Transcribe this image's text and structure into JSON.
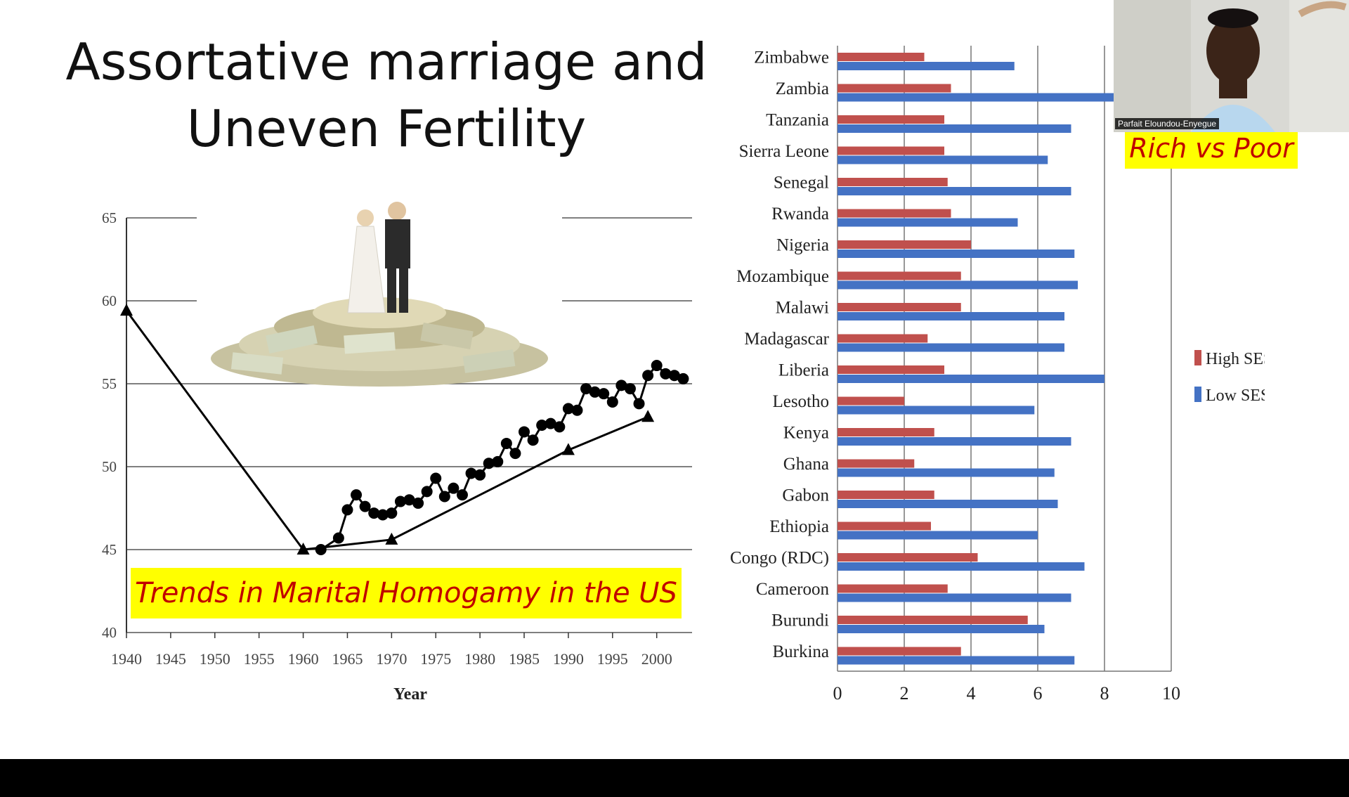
{
  "slide": {
    "title_line1": "Assortative marriage and",
    "title_line2": "Uneven Fertility",
    "line_chart_caption": "Trends in Marital Homogamy in the US",
    "bar_chart_caption": "Rich vs Poor",
    "participant_name": "Parfait Eloundou-Enyegue"
  },
  "colors": {
    "high_ses": "#c0504d",
    "low_ses": "#4472c4",
    "banner_bg": "#ffff00",
    "banner_text": "#c00000"
  },
  "chart_data": [
    {
      "type": "line",
      "title": "",
      "xlabel": "Year",
      "ylabel": "",
      "xlim": [
        1940,
        2004
      ],
      "ylim": [
        40,
        65
      ],
      "x_ticks": [
        1940,
        1945,
        1950,
        1955,
        1960,
        1965,
        1970,
        1975,
        1980,
        1985,
        1990,
        1995,
        2000
      ],
      "y_ticks": [
        40,
        45,
        50,
        55,
        60,
        65
      ],
      "y_tick_labels": [
        "40",
        "45",
        "50",
        "55",
        "60",
        "65"
      ],
      "grid": true,
      "series": [
        {
          "marker": "circle",
          "x": [
            1962,
            1964,
            1965,
            1966,
            1967,
            1968,
            1969,
            1970,
            1971,
            1972,
            1973,
            1974,
            1975,
            1976,
            1977,
            1978,
            1979,
            1980,
            1981,
            1982,
            1983,
            1984,
            1985,
            1986,
            1987,
            1988,
            1989,
            1990,
            1991,
            1992,
            1993,
            1994,
            1995,
            1996,
            1997,
            1998,
            1999,
            2000,
            2001,
            2002,
            2003
          ],
          "y": [
            45.0,
            45.7,
            47.4,
            48.3,
            47.6,
            47.2,
            47.1,
            47.2,
            47.9,
            48.0,
            47.8,
            48.5,
            49.3,
            48.2,
            48.7,
            48.3,
            49.6,
            49.5,
            50.2,
            50.3,
            51.4,
            50.8,
            52.1,
            51.6,
            52.5,
            52.6,
            52.4,
            53.5,
            53.4,
            54.7,
            54.5,
            54.4,
            53.9,
            54.9,
            54.7,
            53.8,
            55.5,
            56.1,
            55.6,
            55.5,
            55.3
          ]
        },
        {
          "marker": "triangle",
          "x": [
            1940,
            1960,
            1970,
            1990,
            1999
          ],
          "y": [
            59.4,
            45.0,
            45.6,
            51.0,
            53.0
          ]
        }
      ]
    },
    {
      "type": "bar",
      "orientation": "horizontal",
      "xlim": [
        0,
        10
      ],
      "x_ticks": [
        0,
        2,
        4,
        6,
        8,
        10
      ],
      "grid": true,
      "legend_position": "right",
      "categories": [
        "Zimbabwe",
        "Zambia",
        "Tanzania",
        "Sierra Leone",
        "Senegal",
        "Rwanda",
        "Nigeria",
        "Mozambique",
        "Malawi",
        "Madagascar",
        "Liberia",
        "Lesotho",
        "Kenya",
        "Ghana",
        "Gabon",
        "Ethiopia",
        "Congo (RDC)",
        "Cameroon",
        "Burundi",
        "Burkina"
      ],
      "series": [
        {
          "name": "High SES",
          "values": [
            2.6,
            3.4,
            3.2,
            3.2,
            3.3,
            3.4,
            4.0,
            3.7,
            3.7,
            2.7,
            3.2,
            2.0,
            2.9,
            2.3,
            2.9,
            2.8,
            4.2,
            3.3,
            5.7,
            3.7
          ]
        },
        {
          "name": "Low SES",
          "values": [
            5.3,
            8.3,
            7.0,
            6.3,
            7.0,
            5.4,
            7.1,
            7.2,
            6.8,
            6.8,
            8.0,
            5.9,
            7.0,
            6.5,
            6.6,
            6.0,
            7.4,
            7.0,
            6.2,
            7.1
          ]
        }
      ]
    }
  ]
}
